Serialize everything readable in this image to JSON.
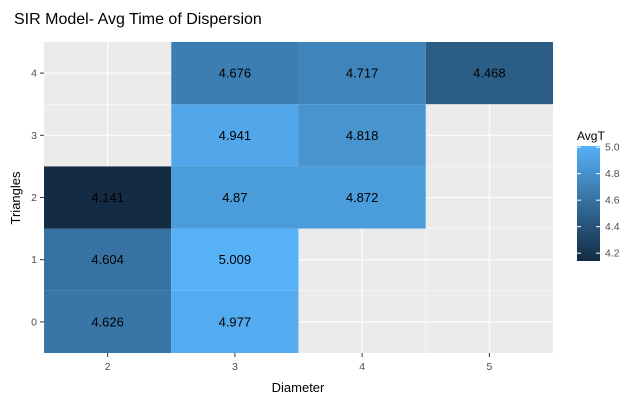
{
  "chart_data": {
    "type": "heatmap",
    "title": "SIR Model- Avg Time of Dispersion",
    "xlabel": "Diameter",
    "ylabel": "Triangles",
    "x_ticks": [
      2,
      3,
      4,
      5
    ],
    "y_ticks": [
      0,
      1,
      2,
      3,
      4
    ],
    "xlim": [
      1.5,
      5.5
    ],
    "ylim": [
      -0.5,
      4.5
    ],
    "grid": true,
    "legend": {
      "title": "AvgT",
      "placement": "right",
      "ticks": [
        4.2,
        4.4,
        4.6,
        4.8,
        5.0
      ],
      "tick_labels": [
        "4.2",
        "4.4",
        "4.6",
        "4.8",
        "5.0"
      ],
      "range": [
        4.141,
        5.009
      ],
      "low_color": "#132B43",
      "high_color": "#56B1F7"
    },
    "cells": [
      {
        "x": 2,
        "y": 0,
        "value": 4.626,
        "label": "4.626"
      },
      {
        "x": 3,
        "y": 0,
        "value": 4.977,
        "label": "4.977"
      },
      {
        "x": 2,
        "y": 1,
        "value": 4.604,
        "label": "4.604"
      },
      {
        "x": 3,
        "y": 1,
        "value": 5.009,
        "label": "5.009"
      },
      {
        "x": 2,
        "y": 2,
        "value": 4.141,
        "label": "4.141"
      },
      {
        "x": 3,
        "y": 2,
        "value": 4.87,
        "label": "4.87"
      },
      {
        "x": 4,
        "y": 2,
        "value": 4.872,
        "label": "4.872"
      },
      {
        "x": 3,
        "y": 3,
        "value": 4.941,
        "label": "4.941"
      },
      {
        "x": 4,
        "y": 3,
        "value": 4.818,
        "label": "4.818"
      },
      {
        "x": 3,
        "y": 4,
        "value": 4.676,
        "label": "4.676"
      },
      {
        "x": 4,
        "y": 4,
        "value": 4.717,
        "label": "4.717"
      },
      {
        "x": 5,
        "y": 4,
        "value": 4.468,
        "label": "4.468"
      }
    ]
  },
  "colors": {
    "panel_background": "#EBEBEB",
    "grid_major": "#FFFFFF"
  }
}
